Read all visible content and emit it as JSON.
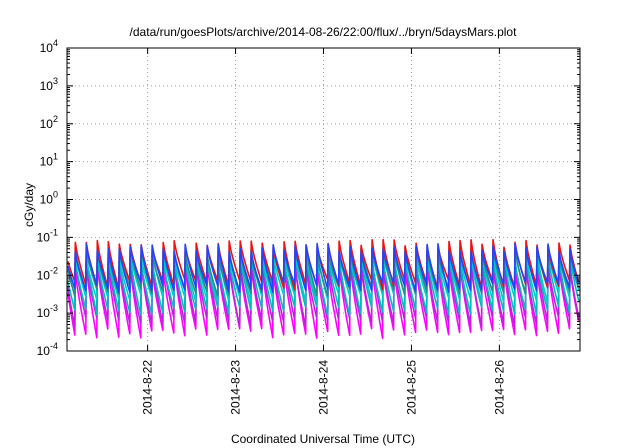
{
  "chart_data": {
    "type": "line",
    "title": "/data/run/goesPlots/archive/2014-08-26/22:00/flux/../bryn/5daysMars.plot",
    "xlabel": "Coordinated Universal Time (UTC)",
    "ylabel": "cGy/day",
    "y_scale": "log",
    "ylim": [
      0.0001,
      10000
    ],
    "y_ticks": [
      {
        "base": "10",
        "exp": "-4",
        "value": 0.0001
      },
      {
        "base": "10",
        "exp": "-3",
        "value": 0.001
      },
      {
        "base": "10",
        "exp": "-2",
        "value": 0.01
      },
      {
        "base": "10",
        "exp": "-1",
        "value": 0.1
      },
      {
        "base": "10",
        "exp": "0",
        "value": 1
      },
      {
        "base": "10",
        "exp": "1",
        "value": 10
      },
      {
        "base": "10",
        "exp": "2",
        "value": 100
      },
      {
        "base": "10",
        "exp": "3",
        "value": 1000
      },
      {
        "base": "10",
        "exp": "4",
        "value": 10000
      }
    ],
    "xlim": [
      "2014-08-21 02:00",
      "2014-08-26 22:00"
    ],
    "x_ticks": [
      "2014-8-22",
      "2014-8-23",
      "2014-8-24",
      "2014-8-25",
      "2014-8-26"
    ],
    "grid": true,
    "legend": "none",
    "cycle_hours": 3,
    "series": [
      {
        "color": "#ff00ff",
        "peak": 0.018,
        "trough": 0.0003
      },
      {
        "color": "#bb22dd",
        "peak": 0.025,
        "trough": 0.0006
      },
      {
        "color": "#00bbbb",
        "peak": 0.03,
        "trough": 0.0012
      },
      {
        "color": "#00cccc",
        "peak": 0.04,
        "trough": 0.0025
      },
      {
        "color": "#2b8a8a",
        "peak": 0.045,
        "trough": 0.004
      },
      {
        "color": "#ee1111",
        "peak": 0.07,
        "trough": 0.006
      },
      {
        "color": "#2244ff",
        "peak": 0.055,
        "trough": 0.005
      }
    ]
  }
}
